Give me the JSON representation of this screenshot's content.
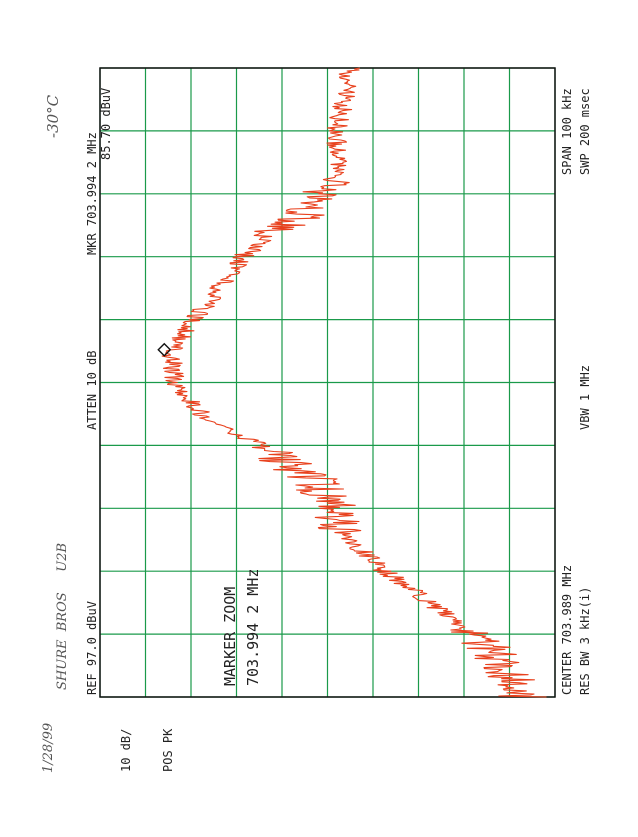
{
  "colors": {
    "grid": "#1a9a4a",
    "trace": "#e8401c",
    "frame": "#111111",
    "text": "#222222",
    "handwriting": "#666666"
  },
  "labels": {
    "ref": "REF  97.0 dBuV",
    "atten": "ATTEN 10 dB",
    "marker_readout": "MKR 703.994 2 MHz",
    "marker_level": "85.70 dBuV",
    "scale": "10 dB/",
    "detector": "POS PK",
    "center": "CENTER 703.989 MHz",
    "span": "SPAN 100 kHz",
    "rbw": "RES BW 3 kHz(i)",
    "vbw": "VBW 1 MHz",
    "sweep": "SWP 200 msec",
    "marker_zoom_title": "MARKER ZOOM",
    "marker_zoom_freq": "703.994 2 MHz"
  },
  "handwriting": {
    "date": "1/28/99",
    "device": "SHURE  BROS     U2B",
    "temperature": "-30°C"
  },
  "chart_data": {
    "type": "line",
    "title": "",
    "xlabel": "",
    "ylabel": "",
    "x_unit": "MHz",
    "y_unit": "dBuV",
    "xlim": [
      703.939,
      704.039
    ],
    "ylim": [
      17.0,
      97.0
    ],
    "grid": true,
    "marker": {
      "x": 703.9942,
      "y": 85.7
    },
    "series": [
      {
        "x": [
          703.939,
          703.944,
          703.949,
          703.954,
          703.959,
          703.964,
          703.969,
          703.974,
          703.979,
          703.984,
          703.989,
          703.994,
          703.999,
          704.004,
          704.009,
          704.014,
          704.019,
          704.024,
          704.029,
          704.034,
          704.039
        ],
        "values": [
          23.0,
          26.0,
          31.0,
          39.0,
          47.0,
          53.0,
          56.0,
          60.0,
          69.0,
          79.0,
          84.0,
          84.5,
          80.5,
          76.0,
          72.0,
          64.0,
          57.5,
          55.0,
          55.5,
          54.0,
          53.0
        ]
      }
    ]
  }
}
